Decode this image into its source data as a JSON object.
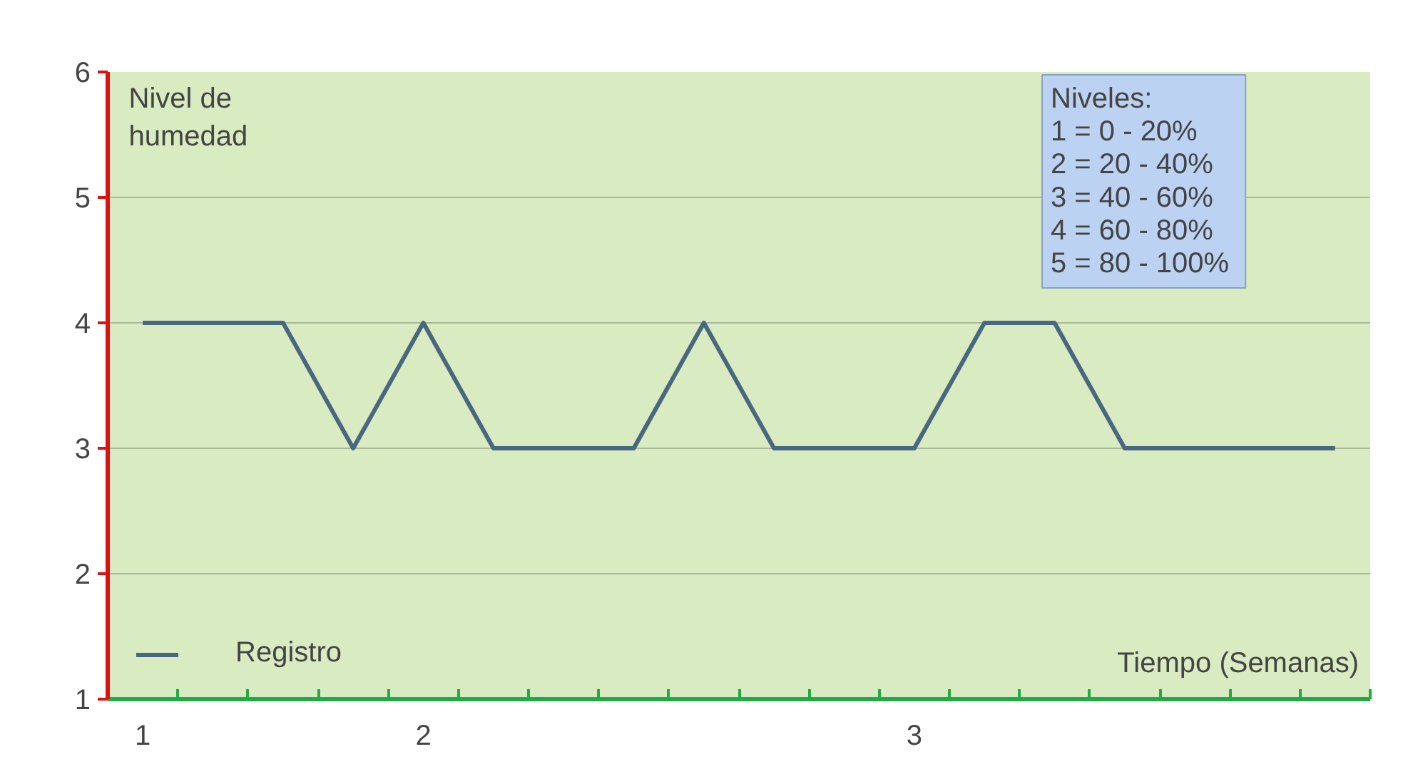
{
  "chart_data": {
    "type": "line",
    "xlabel": "Tiempo (Semanas)",
    "ylabel": "Nivel de humedad",
    "categories": [
      "1",
      null,
      null,
      null,
      "2",
      null,
      null,
      null,
      null,
      null,
      null,
      "3",
      null,
      null,
      null,
      null,
      null,
      null
    ],
    "series": [
      {
        "name": "Registro",
        "color": "#4a6780",
        "values": [
          4,
          4,
          4,
          3,
          4,
          3,
          3,
          3,
          4,
          3,
          3,
          3,
          4,
          4,
          3,
          3,
          3,
          3
        ]
      }
    ],
    "ylim": [
      1,
      6
    ],
    "yticks": [
      1,
      2,
      3,
      4,
      5,
      6
    ],
    "grid": "y",
    "legend": "bottom left",
    "marker": "none",
    "line_style": "solid",
    "annotations": [
      "Niveles:",
      "1 =   0  -   20%",
      "2 = 20  -   40%",
      "3 = 40  -   60%",
      "4 = 60  -   80%",
      "5 = 80  - 100%"
    ]
  }
}
